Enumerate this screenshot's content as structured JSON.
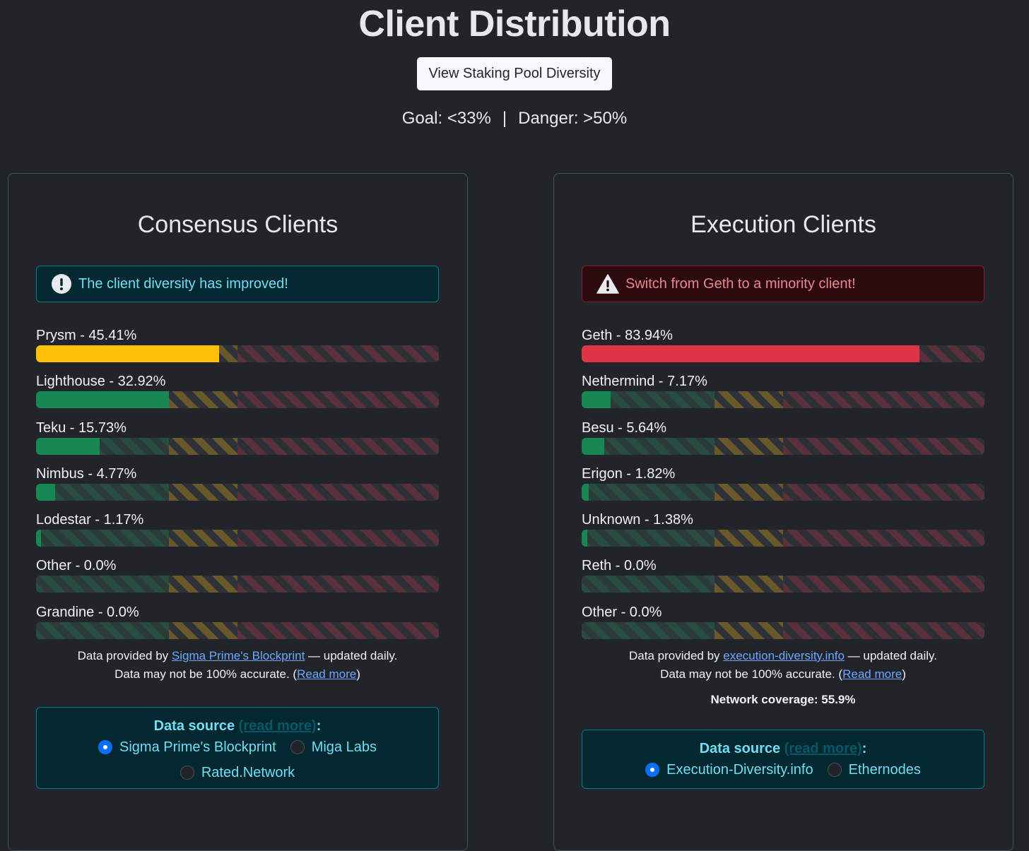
{
  "header": {
    "title": "Client Distribution",
    "staking_button": "View Staking Pool Diversity",
    "goal": "Goal: <33%",
    "separator": "|",
    "danger": "Danger: >50%"
  },
  "thresholds": {
    "goal_pct": 33,
    "danger_pct": 50
  },
  "colors": {
    "green": "#198754",
    "yellow": "#ffc107",
    "red": "#dc3545"
  },
  "consensus": {
    "title": "Consensus Clients",
    "alert": {
      "type": "info",
      "icon": "exclamation-circle-icon",
      "text": "The client diversity has improved!"
    },
    "clients": [
      {
        "name": "Prysm",
        "label": "Prysm - 45.41%",
        "pct": 45.41,
        "status": "yellow"
      },
      {
        "name": "Lighthouse",
        "label": "Lighthouse - 32.92%",
        "pct": 32.92,
        "status": "green"
      },
      {
        "name": "Teku",
        "label": "Teku - 15.73%",
        "pct": 15.73,
        "status": "green"
      },
      {
        "name": "Nimbus",
        "label": "Nimbus - 4.77%",
        "pct": 4.77,
        "status": "green"
      },
      {
        "name": "Lodestar",
        "label": "Lodestar - 1.17%",
        "pct": 1.17,
        "status": "green"
      },
      {
        "name": "Other",
        "label": "Other - 0.0%",
        "pct": 0.0,
        "status": "green"
      },
      {
        "name": "Grandine",
        "label": "Grandine - 0.0%",
        "pct": 0.0,
        "status": "green"
      }
    ],
    "notes": {
      "provided_prefix": "Data provided by ",
      "provider_link": "Sigma Prime's Blockprint",
      "provided_suffix": " — updated daily.",
      "accuracy_prefix": "Data may not be 100% accurate. (",
      "read_more": "Read more",
      "accuracy_suffix": ")"
    },
    "source": {
      "title": "Data source",
      "read_more": "(read more)",
      "colon": ":",
      "options": [
        {
          "label": "Sigma Prime's Blockprint",
          "checked": true
        },
        {
          "label": "Miga Labs",
          "checked": false
        },
        {
          "label": "Rated.Network",
          "checked": false
        }
      ]
    }
  },
  "execution": {
    "title": "Execution Clients",
    "alert": {
      "type": "danger",
      "icon": "warning-triangle-icon",
      "text": "Switch from Geth to a minority client!"
    },
    "clients": [
      {
        "name": "Geth",
        "label": "Geth - 83.94%",
        "pct": 83.94,
        "status": "red"
      },
      {
        "name": "Nethermind",
        "label": "Nethermind - 7.17%",
        "pct": 7.17,
        "status": "green"
      },
      {
        "name": "Besu",
        "label": "Besu - 5.64%",
        "pct": 5.64,
        "status": "green"
      },
      {
        "name": "Erigon",
        "label": "Erigon - 1.82%",
        "pct": 1.82,
        "status": "green"
      },
      {
        "name": "Unknown",
        "label": "Unknown - 1.38%",
        "pct": 1.38,
        "status": "green"
      },
      {
        "name": "Reth",
        "label": "Reth - 0.0%",
        "pct": 0.0,
        "status": "green"
      },
      {
        "name": "Other",
        "label": "Other - 0.0%",
        "pct": 0.0,
        "status": "green"
      }
    ],
    "notes": {
      "provided_prefix": "Data provided by ",
      "provider_link": "execution-diversity.info",
      "provided_suffix": " — updated daily.",
      "accuracy_prefix": "Data may not be 100% accurate. (",
      "read_more": "Read more",
      "accuracy_suffix": ")",
      "coverage": "Network coverage: 55.9%"
    },
    "source": {
      "title": "Data source",
      "read_more": "(read more)",
      "colon": ":",
      "options": [
        {
          "label": "Execution-Diversity.info",
          "checked": true
        },
        {
          "label": "Ethernodes",
          "checked": false
        }
      ]
    }
  }
}
